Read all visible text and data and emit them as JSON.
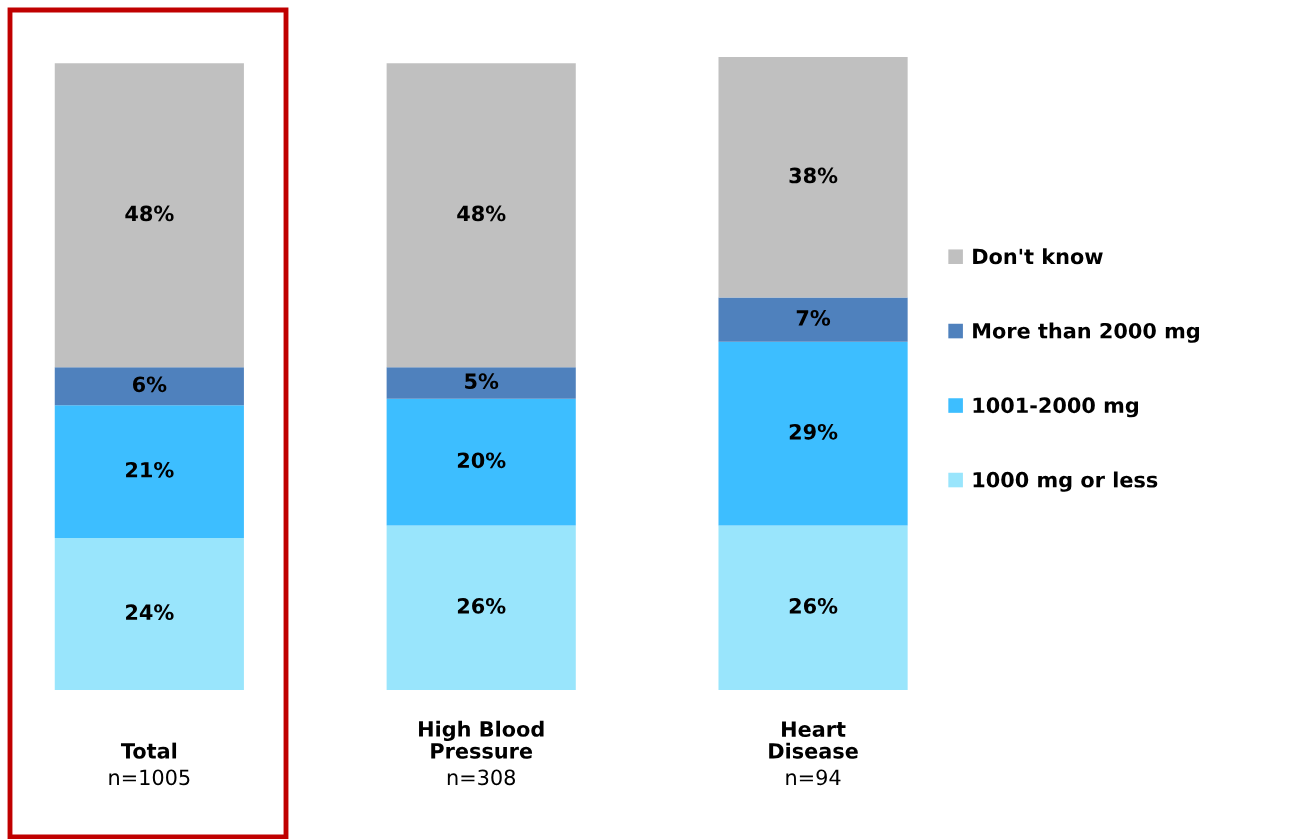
{
  "chart_data": {
    "type": "bar",
    "stacked": true,
    "legend": "right",
    "categories": [
      "Total\nn=1005",
      "High Blood\nPressure\nn=308",
      "Heart\nDisease\nn=94"
    ],
    "series": [
      {
        "name": "1000 mg or less",
        "color": "#99e5fc",
        "values": [
          24,
          26,
          26
        ],
        "value_labels": [
          "24%",
          "26%",
          "26%"
        ]
      },
      {
        "name": "1001-2000 mg",
        "color": "#3dbeff",
        "values": [
          21,
          20,
          29
        ],
        "value_labels": [
          "21%",
          "20%",
          "29%"
        ]
      },
      {
        "name": "More than 2000 mg",
        "color": "#4f81bd",
        "values": [
          6,
          5,
          7
        ],
        "value_labels": [
          "6%",
          "5%",
          "7%"
        ]
      },
      {
        "name": "Don't know",
        "color": "#c0c0c0",
        "values": [
          48,
          48,
          38
        ],
        "value_labels": [
          "48%",
          "48%",
          "38%"
        ]
      }
    ]
  }
}
